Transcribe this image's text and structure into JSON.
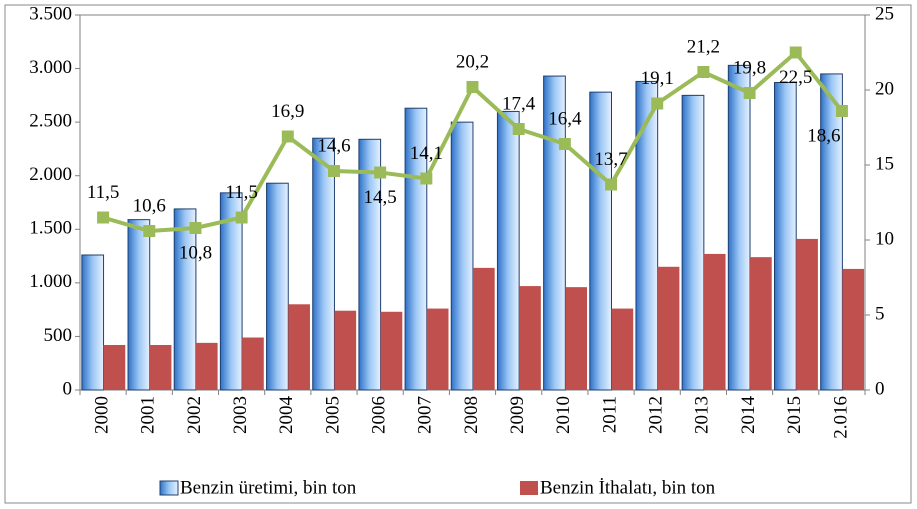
{
  "chart_data": {
    "type": "bar",
    "categories": [
      "2000",
      "2001",
      "2002",
      "2003",
      "2004",
      "2005",
      "2006",
      "2007",
      "2008",
      "2009",
      "2010",
      "2011",
      "2012",
      "2013",
      "2014",
      "2015",
      "2.016"
    ],
    "series": [
      {
        "name": "Benzin üretimi, bin ton",
        "color": "#4a8fdc",
        "values": [
          1260,
          1590,
          1690,
          1840,
          1930,
          2350,
          2340,
          2630,
          2500,
          2600,
          2930,
          2780,
          2880,
          2750,
          3030,
          2870,
          2950
        ]
      },
      {
        "name": "Benzin İthalatı, bin ton",
        "color": "#c0504d",
        "values": [
          420,
          420,
          440,
          490,
          800,
          740,
          730,
          760,
          1140,
          970,
          960,
          760,
          1150,
          1270,
          1240,
          1410,
          1130
        ]
      },
      {
        "type": "line",
        "axis": "y2",
        "color": "#9bbb59",
        "values": [
          11.5,
          10.6,
          10.8,
          11.5,
          16.9,
          14.6,
          14.5,
          14.1,
          20.2,
          17.4,
          16.4,
          13.7,
          19.1,
          21.2,
          19.8,
          22.5,
          18.6
        ],
        "value_labels": [
          "11,5",
          "10,6",
          "10,8",
          "11,5",
          "16,9",
          "14,6",
          "14,5",
          "14,1",
          "20,2",
          "17,4",
          "16,4",
          "13,7",
          "19,1",
          "21,2",
          "19,8",
          "22,5",
          "18,6"
        ]
      }
    ],
    "ylim": [
      0,
      3500
    ],
    "yticks": [
      0,
      500,
      {
        "value": 1000,
        "label": "1.000"
      },
      {
        "value": 1500,
        "label": "1.500"
      },
      {
        "value": 2000,
        "label": "2.000"
      },
      {
        "value": 2500,
        "label": "2.500"
      },
      {
        "value": 3000,
        "label": "3.000"
      },
      {
        "value": 3500,
        "label": "3.500"
      }
    ],
    "y2lim": [
      0,
      25
    ],
    "y2ticks": [
      0,
      5,
      10,
      15,
      20,
      25
    ],
    "legend": "bottom"
  }
}
